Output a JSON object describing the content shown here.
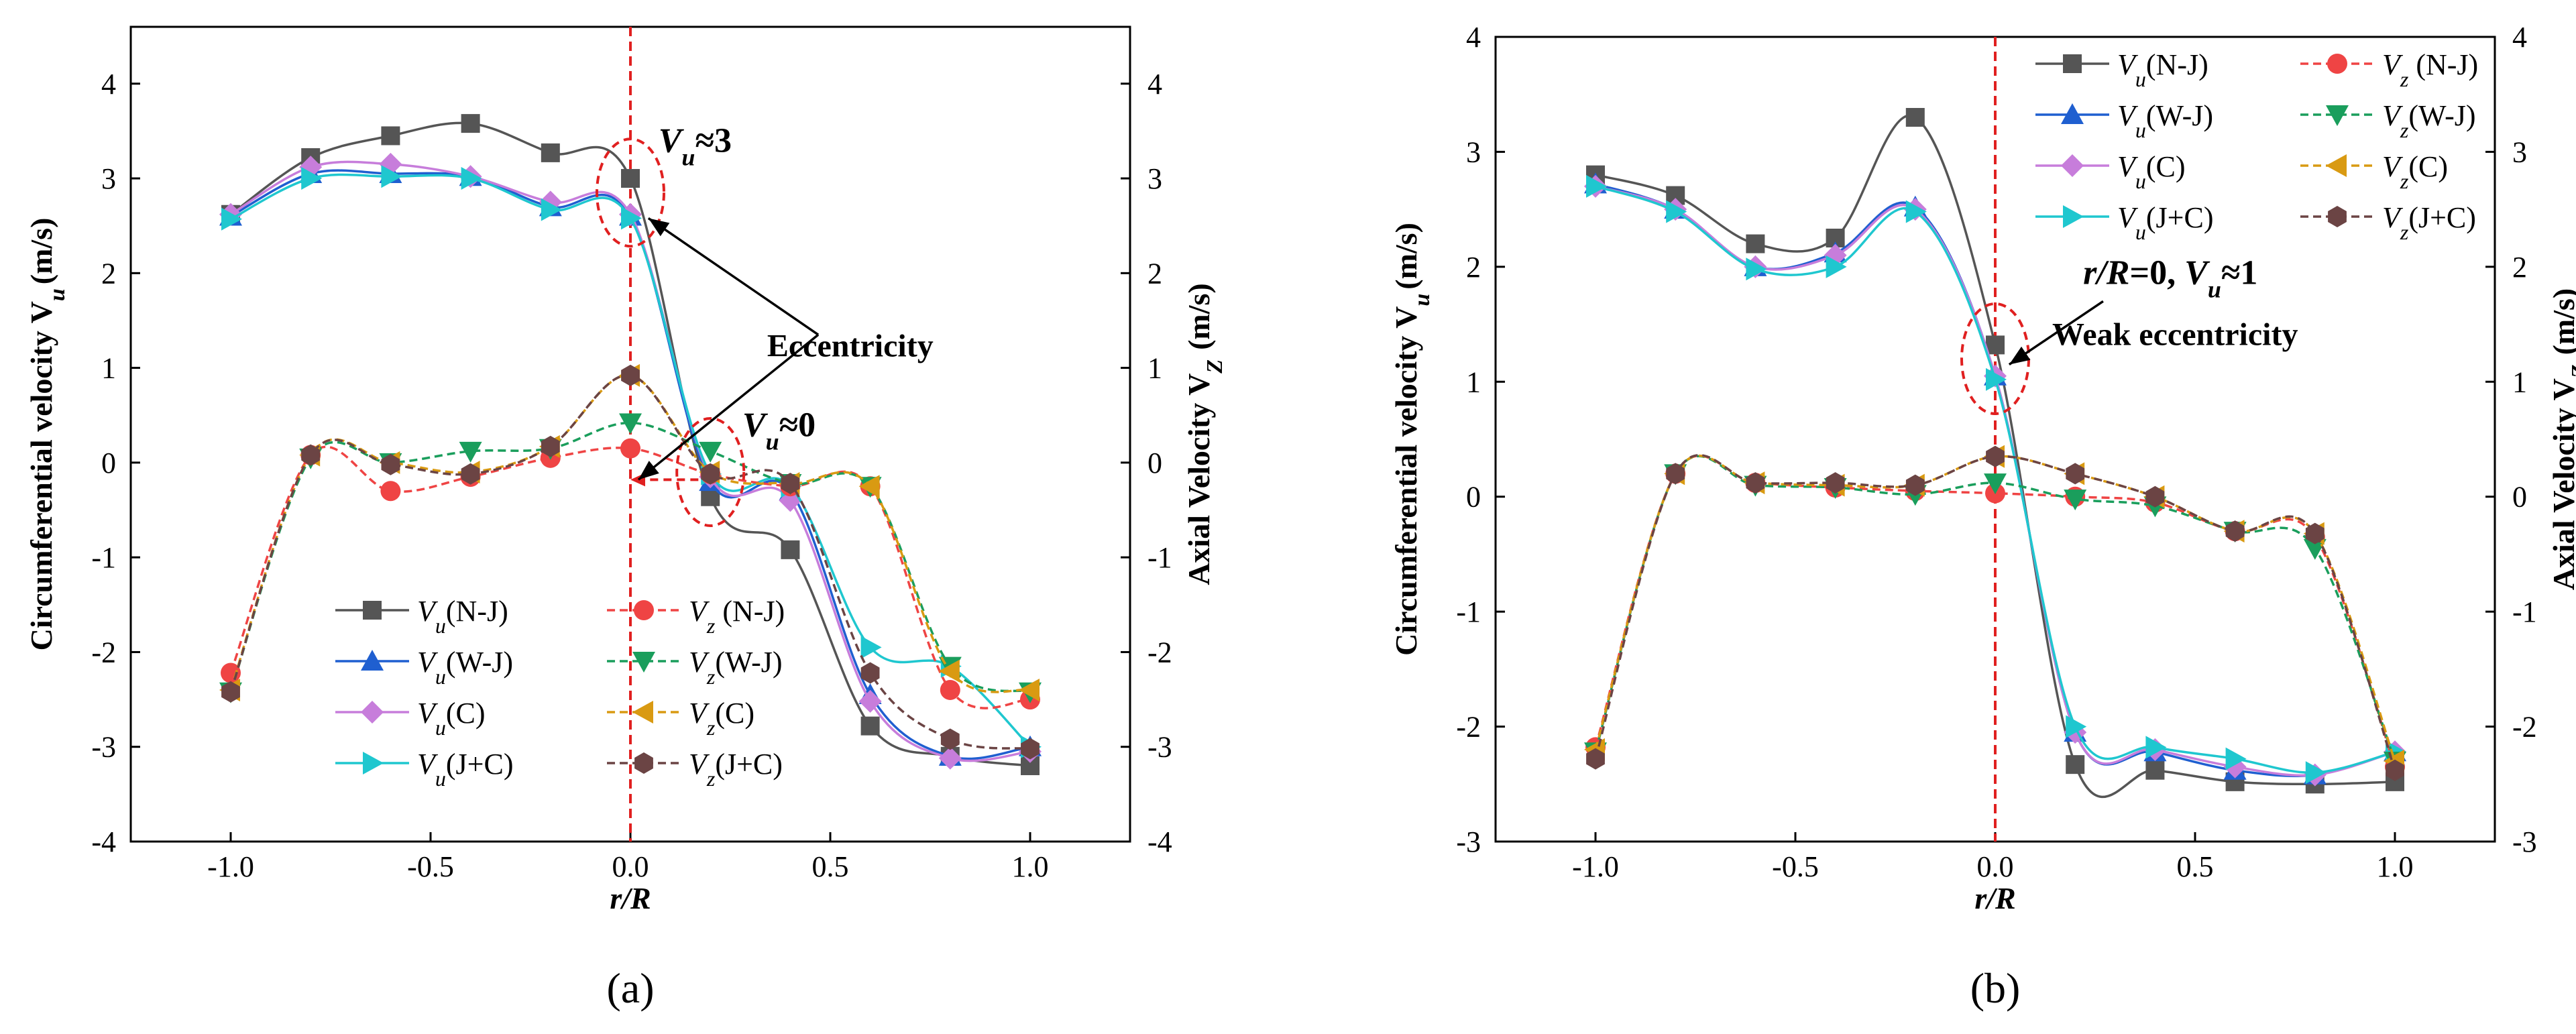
{
  "colors": {
    "vu_nj": "#555555",
    "vz_nj": "#ef4444",
    "vu_wj": "#1f5fd0",
    "vz_wj": "#1a9e5c",
    "vu_c": "#c77ddb",
    "vz_c": "#d99a12",
    "vu_jc": "#1fc7cf",
    "vz_jc": "#6b4444",
    "refline": "#e02020",
    "axis": "#000000"
  },
  "chart_data": [
    {
      "id": "a",
      "type": "line",
      "panel_label": "(a)",
      "xlabel": "r/R",
      "ylabel_left": "Circumferential velocity V",
      "ylabel_left_sub": "u",
      "ylabel_left_unit": "(m/s)",
      "ylabel_right": "Axial Velocity  V",
      "ylabel_right_sub": "Z",
      "ylabel_right_unit": "(m/s)",
      "xlim": [
        -1.25,
        1.25
      ],
      "ylim": [
        -4,
        4.6
      ],
      "xticks": [
        -1.0,
        -0.5,
        0.0,
        0.5,
        1.0
      ],
      "xtick_labels": [
        "-1.0",
        "-0.5",
        "0.0",
        "0.5",
        "1.0"
      ],
      "yticks": [
        -4,
        -3,
        -2,
        -1,
        0,
        1,
        2,
        3,
        4
      ],
      "ytick_labels": [
        "-4",
        "-3",
        "-2",
        "-1",
        "0",
        "1",
        "2",
        "3",
        "4"
      ],
      "legend_position": "bottom-center",
      "vline_x": 0.0,
      "series": [
        {
          "name": "Vu(N-J)",
          "base": "V",
          "sub": "u",
          "case": "(N-J)",
          "kind": "u",
          "color_key": "vu_nj",
          "marker": "square",
          "x": [
            -1.0,
            -0.8,
            -0.6,
            -0.4,
            -0.2,
            0.0,
            0.2,
            0.4,
            0.6,
            0.8,
            1.0
          ],
          "y": [
            2.62,
            3.22,
            3.45,
            3.58,
            3.27,
            3.0,
            -0.36,
            -0.92,
            -2.78,
            -3.1,
            -3.2
          ]
        },
        {
          "name": "Vu(W-J)",
          "base": "V",
          "sub": "u",
          "case": "(W-J)",
          "kind": "u",
          "color_key": "vu_wj",
          "marker": "triangle-up",
          "x": [
            -1.0,
            -0.8,
            -0.6,
            -0.4,
            -0.2,
            0.0,
            0.2,
            0.4,
            0.6,
            0.8,
            1.0
          ],
          "y": [
            2.6,
            3.05,
            3.05,
            3.02,
            2.7,
            2.6,
            -0.2,
            -0.3,
            -2.45,
            -3.1,
            -3.0
          ]
        },
        {
          "name": "Vu(C)",
          "base": "V",
          "sub": "u",
          "case": "(C)",
          "kind": "u",
          "color_key": "vu_c",
          "marker": "diamond",
          "x": [
            -1.0,
            -0.8,
            -0.6,
            -0.4,
            -0.2,
            0.0,
            0.2,
            0.4,
            0.6,
            0.8,
            1.0
          ],
          "y": [
            2.62,
            3.12,
            3.15,
            3.02,
            2.75,
            2.62,
            -0.15,
            -0.4,
            -2.52,
            -3.12,
            -3.05
          ]
        },
        {
          "name": "Vu(J+C)",
          "base": "V",
          "sub": "u",
          "case": "(J+C)",
          "kind": "u",
          "color_key": "vu_jc",
          "marker": "triangle-right",
          "x": [
            -1.0,
            -0.8,
            -0.6,
            -0.4,
            -0.2,
            0.0,
            0.2,
            0.4,
            0.6,
            0.8,
            1.0
          ],
          "y": [
            2.57,
            3.0,
            3.02,
            3.0,
            2.67,
            2.58,
            -0.12,
            -0.25,
            -1.95,
            -2.15,
            -3.0
          ]
        },
        {
          "name": "Vz (N-J)",
          "base": "V",
          "sub": "z",
          "case": " (N-J)",
          "kind": "z",
          "color_key": "vz_nj",
          "marker": "circle",
          "x": [
            -1.0,
            -0.8,
            -0.6,
            -0.4,
            -0.2,
            0.0,
            0.2,
            0.4,
            0.6,
            0.8,
            1.0
          ],
          "y": [
            -2.22,
            0.08,
            -0.3,
            -0.15,
            0.05,
            0.15,
            -0.12,
            -0.25,
            -0.25,
            -2.4,
            -2.5
          ]
        },
        {
          "name": "Vz(W-J)",
          "base": "V",
          "sub": "z",
          "case": "(W-J)",
          "kind": "z",
          "color_key": "vz_wj",
          "marker": "triangle-down",
          "x": [
            -1.0,
            -0.8,
            -0.6,
            -0.4,
            -0.2,
            0.0,
            0.2,
            0.4,
            0.6,
            0.8,
            1.0
          ],
          "y": [
            -2.42,
            0.05,
            0.0,
            0.12,
            0.15,
            0.42,
            0.12,
            -0.22,
            -0.25,
            -2.15,
            -2.42
          ]
        },
        {
          "name": "Vz(C)",
          "base": "V",
          "sub": "z",
          "case": "(C)",
          "kind": "z",
          "color_key": "vz_c",
          "marker": "triangle-left",
          "x": [
            -1.0,
            -0.8,
            -0.6,
            -0.4,
            -0.2,
            0.0,
            0.2,
            0.4,
            0.6,
            0.8,
            1.0
          ],
          "y": [
            -2.4,
            0.08,
            0.0,
            -0.1,
            0.17,
            0.92,
            -0.1,
            -0.22,
            -0.25,
            -2.2,
            -2.4
          ]
        },
        {
          "name": "Vz(J+C)",
          "base": "V",
          "sub": "z",
          "case": "(J+C)",
          "kind": "z",
          "color_key": "vz_jc",
          "marker": "hexagon",
          "x": [
            -1.0,
            -0.8,
            -0.6,
            -0.4,
            -0.2,
            0.0,
            0.2,
            0.4,
            0.6,
            0.8,
            1.0
          ],
          "y": [
            -2.42,
            0.08,
            -0.02,
            -0.12,
            0.17,
            0.92,
            -0.12,
            -0.22,
            -2.22,
            -2.92,
            -3.02
          ]
        }
      ],
      "annotations": [
        {
          "id": "vu3",
          "base": "V",
          "sub": "u",
          "rest": "≈3",
          "x": 0.07,
          "y": 3.28
        },
        {
          "id": "vu0",
          "base": "V",
          "sub": "u",
          "rest": "≈0",
          "x": 0.28,
          "y": 0.28
        },
        {
          "id": "ecc",
          "text": "Eccentricity",
          "x": 0.55,
          "y": 1.12
        }
      ]
    },
    {
      "id": "b",
      "type": "line",
      "panel_label": "(b)",
      "xlabel": "r/R",
      "ylabel_left": "Circumferential velocity V",
      "ylabel_left_sub": "u",
      "ylabel_left_unit": "(m/s)",
      "ylabel_right": "Axial Velocity  V",
      "ylabel_right_sub": "Z",
      "ylabel_right_unit": "(m/s)",
      "xlim": [
        -1.25,
        1.25
      ],
      "ylim": [
        -3,
        4
      ],
      "xticks": [
        -1.0,
        -0.5,
        0.0,
        0.5,
        1.0
      ],
      "xtick_labels": [
        "-1.0",
        "-0.5",
        "0.0",
        "0.5",
        "1.0"
      ],
      "yticks": [
        -3,
        -2,
        -1,
        0,
        1,
        2,
        3,
        4
      ],
      "ytick_labels": [
        "-3",
        "-2",
        "-1",
        "0",
        "1",
        "2",
        "3",
        "4"
      ],
      "legend_position": "top-right",
      "vline_x": 0.0,
      "series": [
        {
          "name": "Vu(N-J)",
          "base": "V",
          "sub": "u",
          "case": "(N-J)",
          "kind": "u",
          "color_key": "vu_nj",
          "marker": "square",
          "x": [
            -1.0,
            -0.8,
            -0.6,
            -0.4,
            -0.2,
            0.0,
            0.2,
            0.4,
            0.6,
            0.8,
            1.0
          ],
          "y": [
            2.8,
            2.62,
            2.2,
            2.25,
            3.3,
            1.32,
            -2.33,
            -2.38,
            -2.48,
            -2.5,
            -2.48
          ]
        },
        {
          "name": "Vu(W-J)",
          "base": "V",
          "sub": "u",
          "case": "(W-J)",
          "kind": "u",
          "color_key": "vu_wj",
          "marker": "triangle-up",
          "x": [
            -1.0,
            -0.8,
            -0.6,
            -0.4,
            -0.2,
            0.0,
            0.2,
            0.4,
            0.6,
            0.8,
            1.0
          ],
          "y": [
            2.72,
            2.5,
            2.0,
            2.12,
            2.52,
            1.05,
            -2.05,
            -2.22,
            -2.38,
            -2.42,
            -2.22
          ]
        },
        {
          "name": "Vu(C)",
          "base": "V",
          "sub": "u",
          "case": "(C)",
          "kind": "u",
          "color_key": "vu_c",
          "marker": "diamond",
          "x": [
            -1.0,
            -0.8,
            -0.6,
            -0.4,
            -0.2,
            0.0,
            0.2,
            0.4,
            0.6,
            0.8,
            1.0
          ],
          "y": [
            2.7,
            2.5,
            2.0,
            2.1,
            2.5,
            1.05,
            -2.05,
            -2.2,
            -2.35,
            -2.42,
            -2.22
          ]
        },
        {
          "name": "Vu(J+C)",
          "base": "V",
          "sub": "u",
          "case": "(J+C)",
          "kind": "u",
          "color_key": "vu_jc",
          "marker": "triangle-right",
          "x": [
            -1.0,
            -0.8,
            -0.6,
            -0.4,
            -0.2,
            0.0,
            0.2,
            0.4,
            0.6,
            0.8,
            1.0
          ],
          "y": [
            2.7,
            2.48,
            1.98,
            2.0,
            2.48,
            1.02,
            -2.0,
            -2.18,
            -2.28,
            -2.4,
            -2.22
          ]
        },
        {
          "name": "Vz (N-J)",
          "base": "V",
          "sub": "z",
          "case": " (N-J)",
          "kind": "z",
          "color_key": "vz_nj",
          "marker": "circle",
          "x": [
            -1.0,
            -0.8,
            -0.6,
            -0.4,
            -0.2,
            0.0,
            0.2,
            0.4,
            0.6,
            0.8,
            1.0
          ],
          "y": [
            -2.18,
            0.2,
            0.12,
            0.08,
            0.05,
            0.03,
            0.0,
            -0.05,
            -0.3,
            -0.35,
            -2.35
          ]
        },
        {
          "name": "Vz(W-J)",
          "base": "V",
          "sub": "z",
          "case": "(W-J)",
          "kind": "z",
          "color_key": "vz_wj",
          "marker": "triangle-down",
          "x": [
            -1.0,
            -0.8,
            -0.6,
            -0.4,
            -0.2,
            0.0,
            0.2,
            0.4,
            0.6,
            0.8,
            1.0
          ],
          "y": [
            -2.22,
            0.2,
            0.1,
            0.08,
            0.02,
            0.12,
            -0.02,
            -0.08,
            -0.3,
            -0.45,
            -2.3
          ]
        },
        {
          "name": "Vz(C)",
          "base": "V",
          "sub": "z",
          "case": "(C)",
          "kind": "z",
          "color_key": "vz_c",
          "marker": "triangle-left",
          "x": [
            -1.0,
            -0.8,
            -0.6,
            -0.4,
            -0.2,
            0.0,
            0.2,
            0.4,
            0.6,
            0.8,
            1.0
          ],
          "y": [
            -2.2,
            0.2,
            0.12,
            0.1,
            0.1,
            0.35,
            0.2,
            0.0,
            -0.3,
            -0.32,
            -2.3
          ]
        },
        {
          "name": "Vz(J+C)",
          "base": "V",
          "sub": "z",
          "case": "(J+C)",
          "kind": "z",
          "color_key": "vz_jc",
          "marker": "hexagon",
          "x": [
            -1.0,
            -0.8,
            -0.6,
            -0.4,
            -0.2,
            0.0,
            0.2,
            0.4,
            0.6,
            0.8,
            1.0
          ],
          "y": [
            -2.28,
            0.2,
            0.12,
            0.12,
            0.1,
            0.35,
            0.2,
            0.0,
            -0.3,
            -0.32,
            -2.38
          ]
        }
      ],
      "annotations": [
        {
          "id": "rr0",
          "prefix": "r/R",
          "mid": "=0, ",
          "base": "V",
          "sub": "u",
          "rest": "≈1",
          "x": 0.22,
          "y": 1.85
        },
        {
          "id": "weak",
          "text": "Weak eccentricity",
          "x": 0.45,
          "y": 1.32
        }
      ]
    }
  ]
}
